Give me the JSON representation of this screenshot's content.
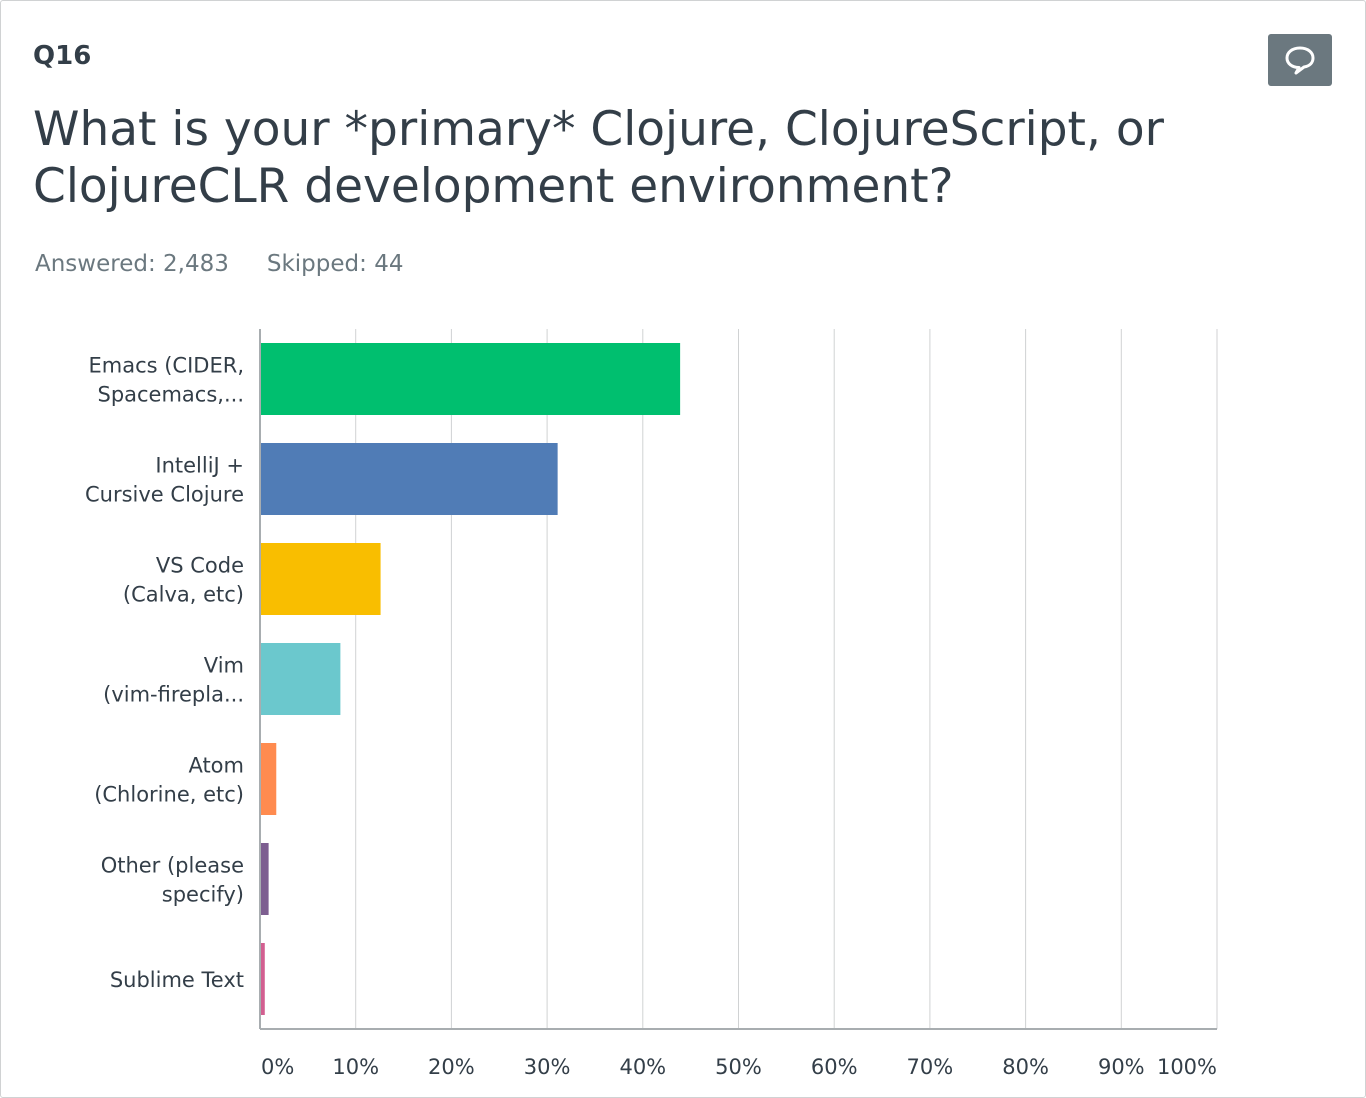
{
  "question": {
    "number": "Q16",
    "title": "What is your *primary* Clojure, ClojureScript, or ClojureCLR development environment?",
    "answered_label": "Answered: 2,483",
    "skipped_label": "Skipped: 44",
    "comment_icon": "speech-bubble-icon"
  },
  "colors": {
    "text": "#333e48",
    "muted": "#6b787f",
    "grid": "#d0d2d3",
    "button": "#6b787f"
  },
  "chart_data": {
    "type": "bar",
    "orientation": "horizontal",
    "categories": [
      [
        "Emacs (CIDER,",
        "Spacemacs,..."
      ],
      [
        "IntelliJ +",
        "Cursive Clojure"
      ],
      [
        "VS Code",
        "(Calva, etc)"
      ],
      [
        "Vim",
        "(vim-firepla..."
      ],
      [
        "Atom",
        "(Chlorine, etc)"
      ],
      [
        "Other (please",
        "specify)"
      ],
      [
        "Sublime Text"
      ]
    ],
    "values": [
      43.9,
      31.1,
      12.6,
      8.4,
      1.7,
      0.9,
      0.5
    ],
    "colors": [
      "#00bf6f",
      "#507cb6",
      "#f9be00",
      "#6bc8cd",
      "#ff8b4f",
      "#7d5e90",
      "#d25f90"
    ],
    "xlim": [
      0,
      100
    ],
    "ticks": [
      "0%",
      "10%",
      "20%",
      "30%",
      "40%",
      "50%",
      "60%",
      "70%",
      "80%",
      "90%",
      "100%"
    ],
    "grid": true,
    "legend": "none"
  }
}
